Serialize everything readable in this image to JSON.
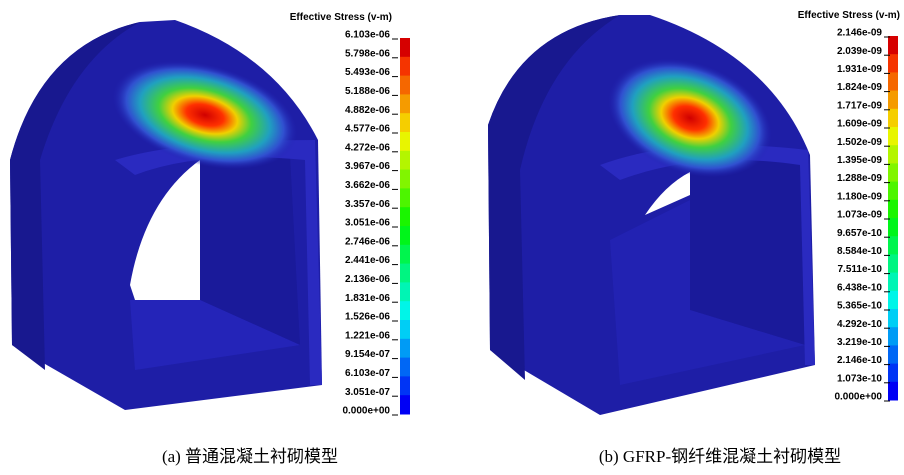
{
  "panels": [
    {
      "legend_title": "Effective Stress (v-m)",
      "legend_labels": [
        "6.103e-06",
        "5.798e-06",
        "5.493e-06",
        "5.188e-06",
        "4.882e-06",
        "4.577e-06",
        "4.272e-06",
        "3.967e-06",
        "3.662e-06",
        "3.357e-06",
        "3.051e-06",
        "2.746e-06",
        "2.441e-06",
        "2.136e-06",
        "1.831e-06",
        "1.526e-06",
        "1.221e-06",
        "9.154e-07",
        "6.103e-07",
        "3.051e-07",
        "0.000e+00"
      ],
      "caption": "(a)  普通混凝土衬砌模型"
    },
    {
      "legend_title": "Effective Stress (v-m)",
      "legend_labels": [
        "2.146e-09",
        "2.039e-09",
        "1.931e-09",
        "1.824e-09",
        "1.717e-09",
        "1.609e-09",
        "1.502e-09",
        "1.395e-09",
        "1.288e-09",
        "1.180e-09",
        "1.073e-09",
        "9.657e-10",
        "8.584e-10",
        "7.511e-10",
        "6.438e-10",
        "5.365e-10",
        "4.292e-10",
        "3.219e-10",
        "2.146e-10",
        "1.073e-10",
        "0.000e+00"
      ],
      "caption": "(b) GFRP-钢纤维混凝土衬砌模型"
    }
  ]
}
